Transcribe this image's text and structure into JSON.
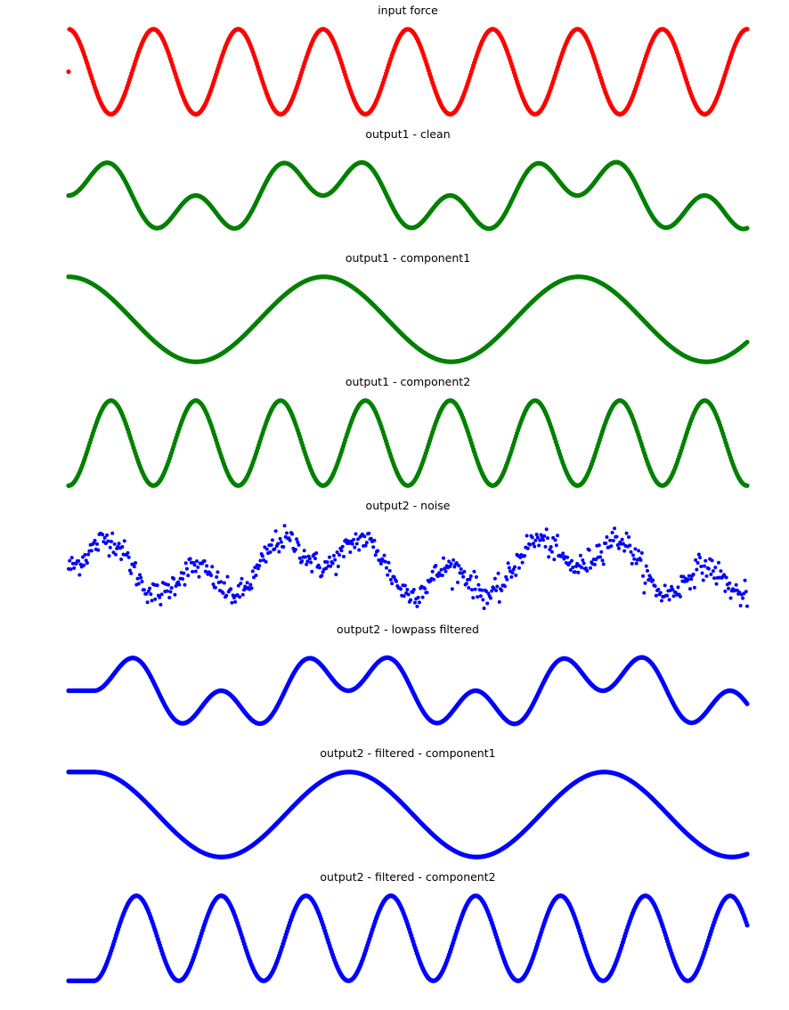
{
  "figure": {
    "background": "#ffffff"
  },
  "chart_data": [
    {
      "type": "scatter",
      "title": "input force",
      "color": "#ff0000",
      "x_range": [
        0,
        8
      ],
      "ylim": [
        -1.1,
        1.1
      ],
      "grid": false,
      "axes_visible": false,
      "components": [
        {
          "amplitude": 1.0,
          "cycles": 8.0,
          "phase_deg": 90
        }
      ],
      "first_sample": {
        "x": 0,
        "y": 0
      },
      "noise_sd": 0
    },
    {
      "type": "scatter",
      "title": "output1 - clean",
      "color": "#008000",
      "x_range": [
        0,
        8
      ],
      "ylim": [
        -2.2,
        2.2
      ],
      "grid": false,
      "axes_visible": false,
      "components": [
        {
          "amplitude": 1.0,
          "cycles": 2.66,
          "phase_deg": 90
        },
        {
          "amplitude": 1.0,
          "cycles": 8.0,
          "phase_deg": -90
        }
      ],
      "noise_sd": 0
    },
    {
      "type": "scatter",
      "title": "output1 - component1",
      "color": "#008000",
      "x_range": [
        0,
        8
      ],
      "ylim": [
        -1.1,
        1.1
      ],
      "grid": false,
      "axes_visible": false,
      "components": [
        {
          "amplitude": 1.0,
          "cycles": 2.66,
          "phase_deg": 90
        }
      ],
      "noise_sd": 0
    },
    {
      "type": "scatter",
      "title": "output1 - component2",
      "color": "#008000",
      "x_range": [
        0,
        8
      ],
      "ylim": [
        -1.1,
        1.1
      ],
      "grid": false,
      "axes_visible": false,
      "components": [
        {
          "amplitude": 1.0,
          "cycles": 8.0,
          "phase_deg": -90
        }
      ],
      "noise_sd": 0
    },
    {
      "type": "scatter",
      "title": "output2 - noise",
      "color": "#0000ff",
      "x_range": [
        0,
        8
      ],
      "ylim": [
        -2.6,
        2.6
      ],
      "grid": false,
      "axes_visible": false,
      "components": [
        {
          "amplitude": 1.0,
          "cycles": 2.66,
          "phase_deg": 90
        },
        {
          "amplitude": 1.0,
          "cycles": 8.0,
          "phase_deg": -90
        }
      ],
      "noise_sd": 0.35
    },
    {
      "type": "scatter",
      "title": "output2 - lowpass filtered",
      "color": "#0000ff",
      "x_range": [
        0,
        8
      ],
      "ylim": [
        -2.2,
        2.2
      ],
      "grid": false,
      "axes_visible": false,
      "lag_x": 0.3,
      "components": [
        {
          "amplitude": 1.0,
          "cycles": 2.66,
          "phase_deg": 90
        },
        {
          "amplitude": 1.0,
          "cycles": 8.0,
          "phase_deg": -90
        }
      ],
      "noise_sd": 0
    },
    {
      "type": "scatter",
      "title": "output2 - filtered - component1",
      "color": "#0000ff",
      "x_range": [
        0,
        8
      ],
      "ylim": [
        -1.1,
        1.1
      ],
      "grid": false,
      "axes_visible": false,
      "lag_x": 0.3,
      "components": [
        {
          "amplitude": 1.0,
          "cycles": 2.66,
          "phase_deg": 90
        }
      ],
      "noise_sd": 0
    },
    {
      "type": "scatter",
      "title": "output2 - filtered - component2",
      "color": "#0000ff",
      "x_range": [
        0,
        8
      ],
      "ylim": [
        -1.1,
        1.1
      ],
      "grid": false,
      "axes_visible": false,
      "lag_x": 0.3,
      "components": [
        {
          "amplitude": 1.0,
          "cycles": 8.0,
          "phase_deg": -90
        }
      ],
      "noise_sd": 0
    }
  ]
}
